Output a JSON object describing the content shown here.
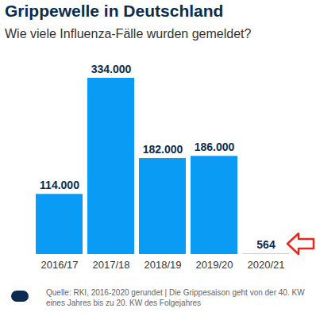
{
  "chart_data": {
    "type": "bar",
    "title": "Grippewelle in Deutschland",
    "subtitle": "Wie viele Influenza-Fälle wurden gemeldet?",
    "categories": [
      "2016/17",
      "2017/18",
      "2018/19",
      "2019/20",
      "2020/21"
    ],
    "values": [
      114000,
      334000,
      182000,
      186000,
      564
    ],
    "value_labels": [
      "114.000",
      "334.000",
      "182.000",
      "186.000",
      "564"
    ],
    "color": "#0a9bf5",
    "ylim": [
      0,
      334000
    ],
    "data_labels": true,
    "tick_labels": "x",
    "grid": false,
    "caption": "Quelle: RKI, 2016-2020 gerundet | Die Grippesaison geht von der 40. KW eines Jahres bis zu 20. KW des Folgejahres"
  }
}
